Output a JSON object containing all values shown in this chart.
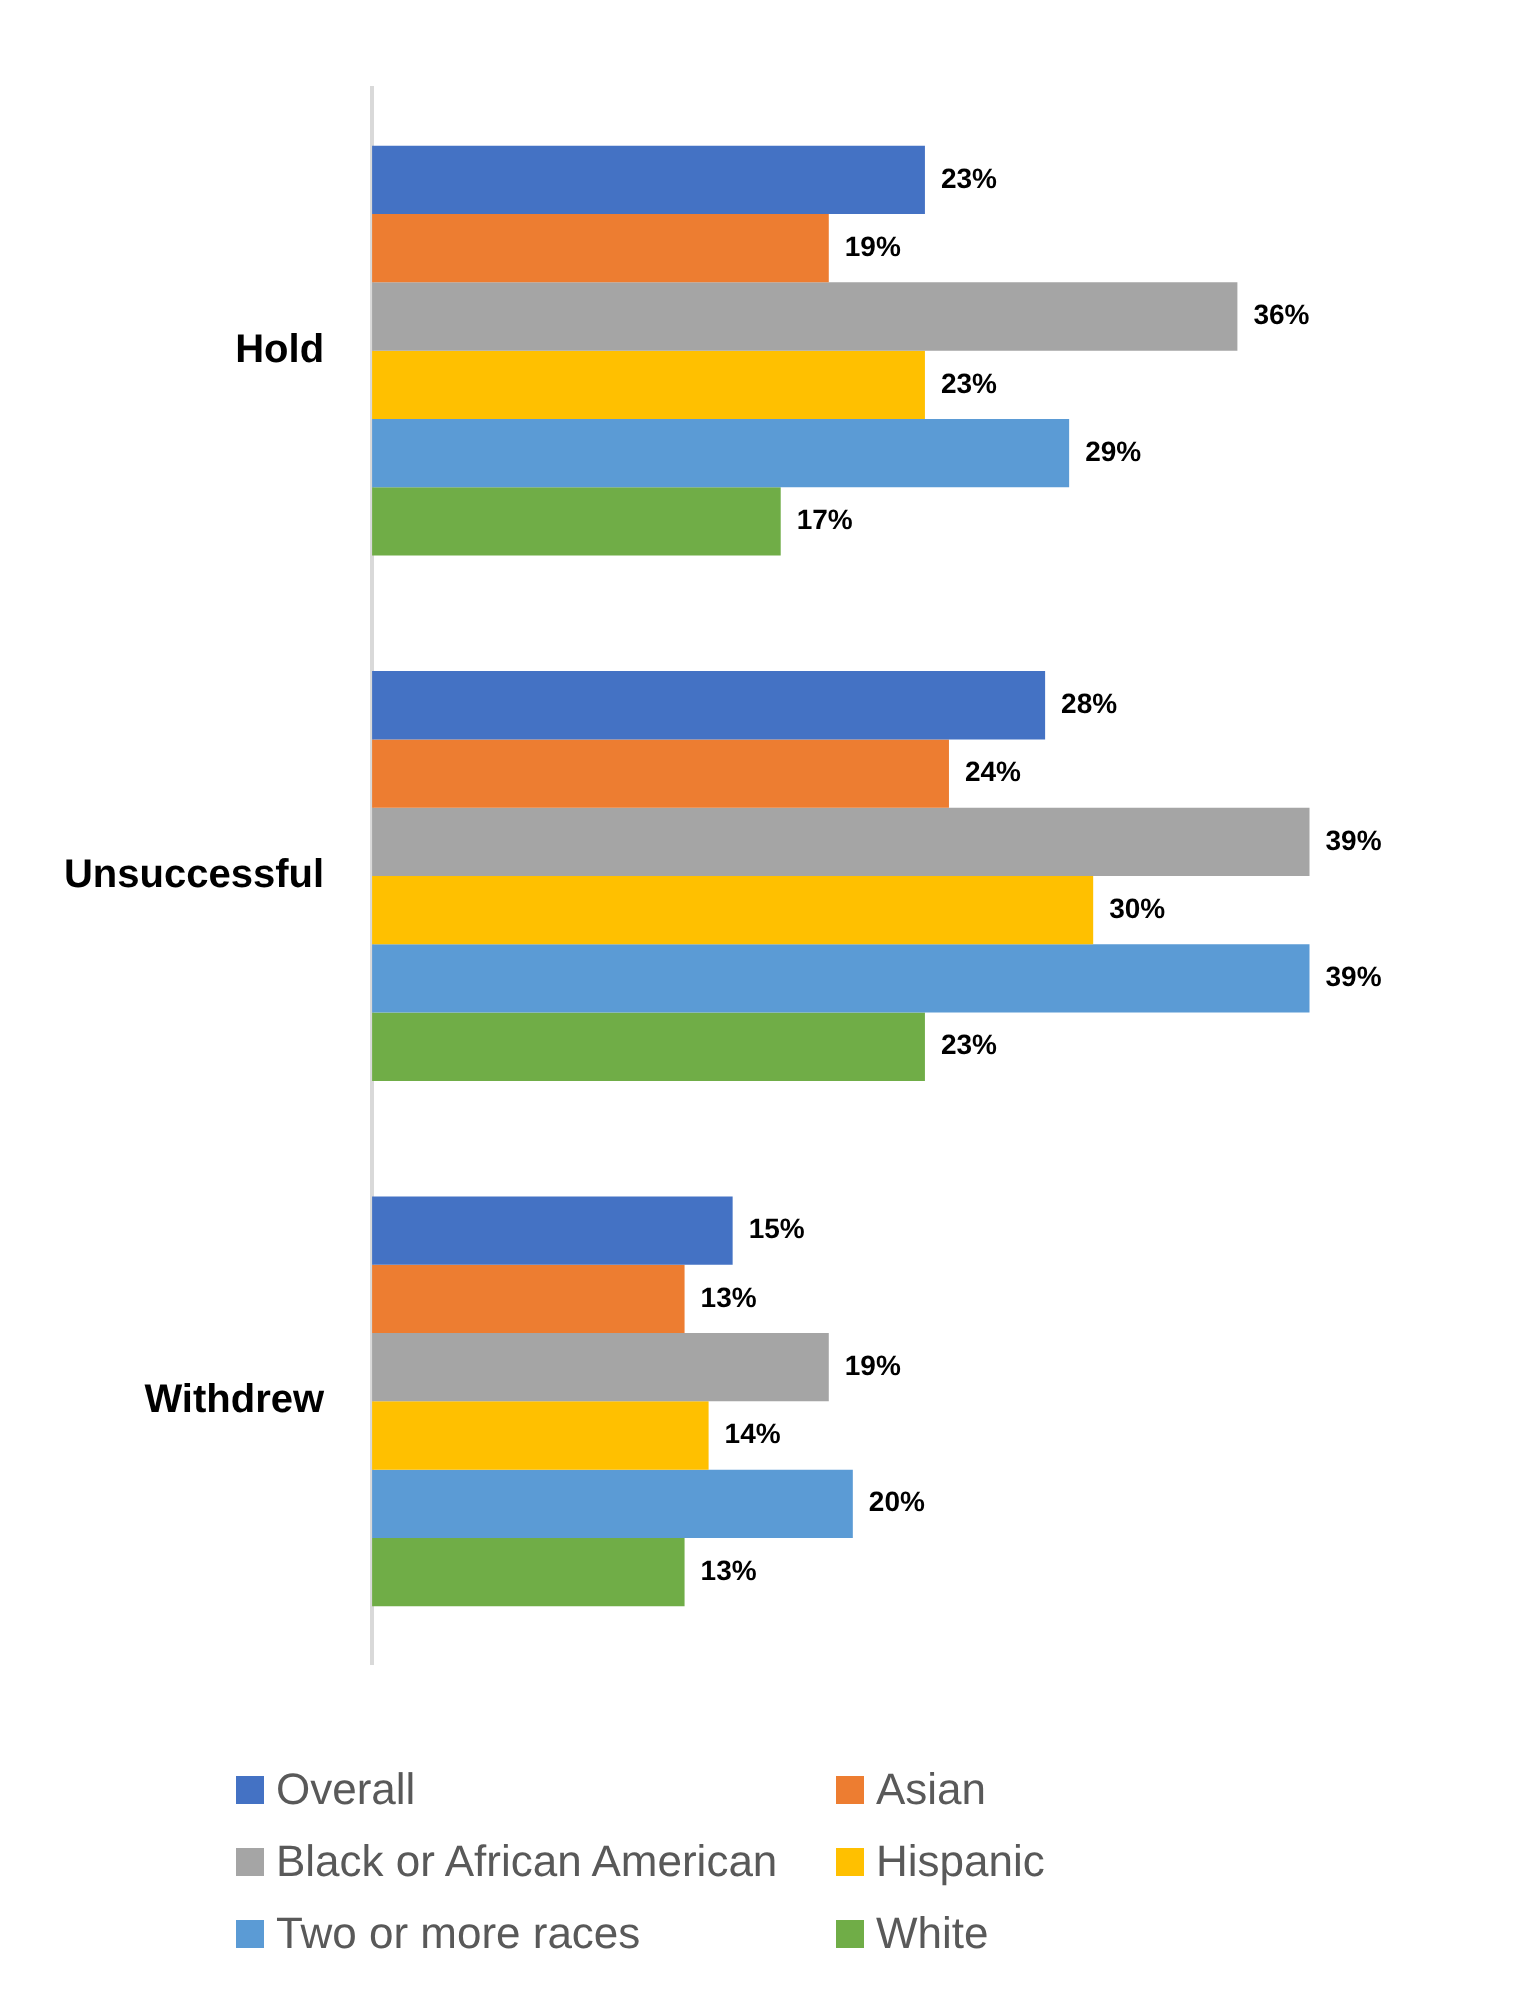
{
  "chart_data": {
    "type": "bar",
    "orientation": "horizontal",
    "categories": [
      "Hold",
      "Unsuccessful",
      "Withdrew"
    ],
    "series": [
      {
        "name": "Overall",
        "color": "#4472c4",
        "values": [
          23,
          28,
          15
        ],
        "value_labels": [
          "23%",
          "28%",
          "15%"
        ]
      },
      {
        "name": "Asian",
        "color": "#ed7d31",
        "values": [
          19,
          24,
          13
        ],
        "value_labels": [
          "19%",
          "24%",
          "13%"
        ]
      },
      {
        "name": "Black or African American",
        "color": "#a5a5a5",
        "values": [
          36,
          39,
          19
        ],
        "value_labels": [
          "36%",
          "39%",
          "19%"
        ]
      },
      {
        "name": "Hispanic",
        "color": "#ffc000",
        "values": [
          23,
          30,
          14
        ],
        "value_labels": [
          "23%",
          "30%",
          "14%"
        ]
      },
      {
        "name": "Two or more races",
        "color": "#5b9bd5",
        "values": [
          29,
          39,
          20
        ],
        "value_labels": [
          "29%",
          "39%",
          "20%"
        ]
      },
      {
        "name": "White",
        "color": "#70ad47",
        "values": [
          17,
          23,
          13
        ],
        "value_labels": [
          "17%",
          "23%",
          "13%"
        ]
      }
    ],
    "tick_labels": "y",
    "legend": "bottom"
  }
}
